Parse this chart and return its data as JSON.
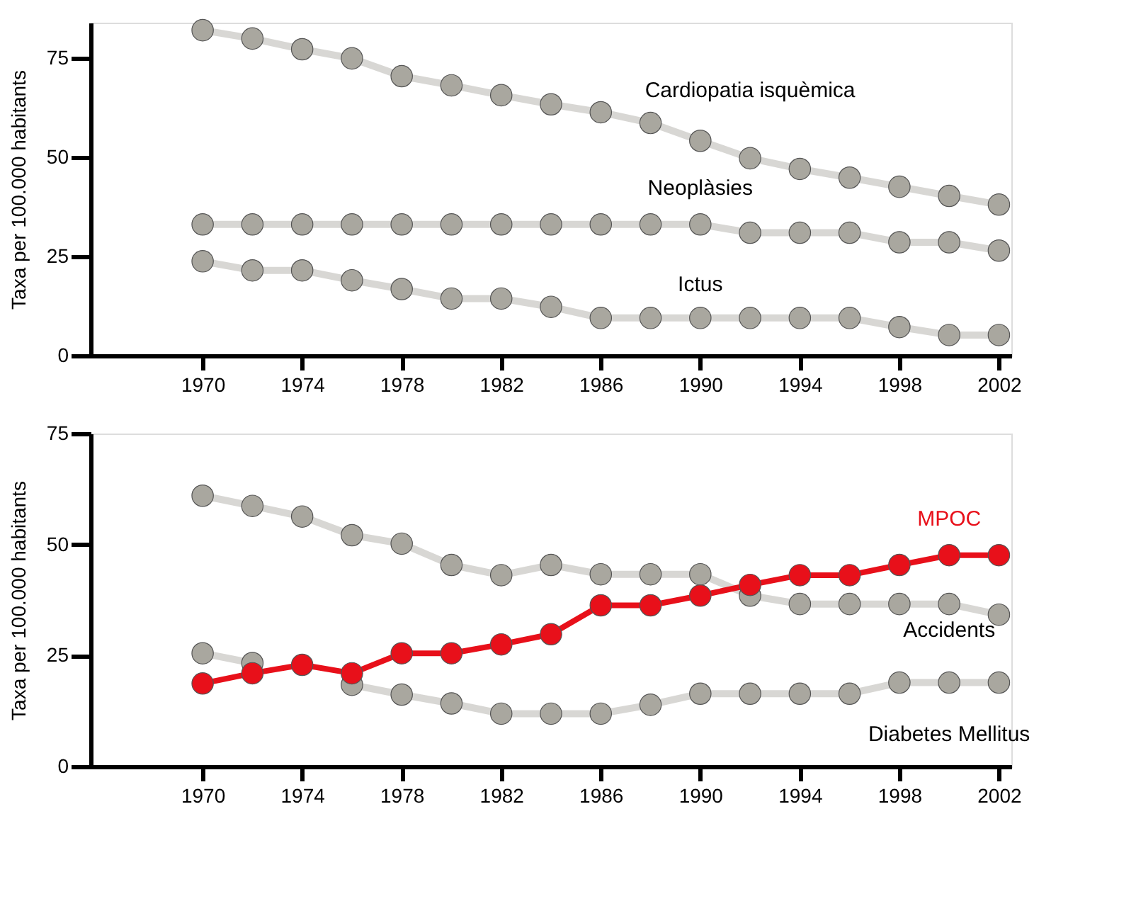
{
  "chart_data": [
    {
      "type": "line",
      "ylabel": "Taxa per 100.000 habitants",
      "x": [
        1970,
        1972,
        1974,
        1976,
        1978,
        1980,
        1982,
        1984,
        1986,
        1988,
        1990,
        1992,
        1994,
        1996,
        1998,
        2000,
        2002
      ],
      "xlim": [
        1965.5,
        2002.5
      ],
      "xticks": [
        1970,
        1974,
        1978,
        1982,
        1986,
        1990,
        1994,
        1998,
        2002
      ],
      "ylim": [
        0,
        84
      ],
      "yticks": [
        0,
        25,
        50,
        75
      ],
      "grid": false,
      "marker": "circle",
      "line_style": "solid",
      "series": [
        {
          "name": "Cardiopatia isquèmica",
          "color": "#a9a79f",
          "values": [
            82.1,
            80.0,
            77.3,
            75.0,
            70.5,
            68.2,
            65.7,
            63.4,
            61.4,
            58.7,
            54.2,
            49.8,
            47.1,
            44.9,
            42.6,
            40.3,
            38.1
          ]
        },
        {
          "name": "Neoplàsies",
          "color": "#a9a79f",
          "values": [
            33.1,
            33.1,
            33.1,
            33.1,
            33.1,
            33.1,
            33.1,
            33.1,
            33.1,
            33.1,
            33.1,
            31.0,
            31.0,
            31.0,
            28.6,
            28.6,
            26.5
          ]
        },
        {
          "name": "Ictus",
          "color": "#a9a79f",
          "values": [
            23.8,
            21.5,
            21.5,
            19.0,
            16.8,
            14.4,
            14.4,
            12.3,
            9.5,
            9.5,
            9.5,
            9.5,
            9.5,
            9.5,
            7.2,
            5.2,
            5.2
          ]
        }
      ]
    },
    {
      "type": "line",
      "ylabel": "Taxa per 100.000 habitants",
      "x": [
        1970,
        1972,
        1974,
        1976,
        1978,
        1980,
        1982,
        1984,
        1986,
        1988,
        1990,
        1992,
        1994,
        1996,
        1998,
        2000,
        2002
      ],
      "xlim": [
        1965.5,
        2002.5
      ],
      "xticks": [
        1970,
        1974,
        1978,
        1982,
        1986,
        1990,
        1994,
        1998,
        2002
      ],
      "ylim": [
        0,
        75
      ],
      "yticks": [
        0,
        25,
        50,
        75
      ],
      "grid": false,
      "marker": "circle",
      "line_style": "solid",
      "series": [
        {
          "name": "Accidents",
          "color": "#a9a79f",
          "values": [
            61.0,
            58.7,
            56.3,
            52.1,
            50.2,
            45.4,
            43.1,
            45.4,
            43.3,
            43.3,
            43.3,
            38.5,
            36.6,
            36.6,
            36.6,
            36.6,
            34.2
          ]
        },
        {
          "name": "Diabetes Mellitus",
          "color": "#a9a79f",
          "values": [
            25.5,
            23.3,
            null,
            18.4,
            16.2,
            14.2,
            11.9,
            11.9,
            11.9,
            13.9,
            16.4,
            16.4,
            16.4,
            16.4,
            18.9,
            18.9,
            18.9
          ]
        },
        {
          "name": "MPOC",
          "color": "#e8101a",
          "values": [
            18.7,
            21.0,
            22.9,
            21.0,
            25.5,
            25.5,
            27.5,
            29.8,
            36.3,
            36.3,
            38.5,
            40.9,
            43.1,
            43.1,
            45.4,
            47.6,
            47.6
          ]
        }
      ]
    }
  ]
}
